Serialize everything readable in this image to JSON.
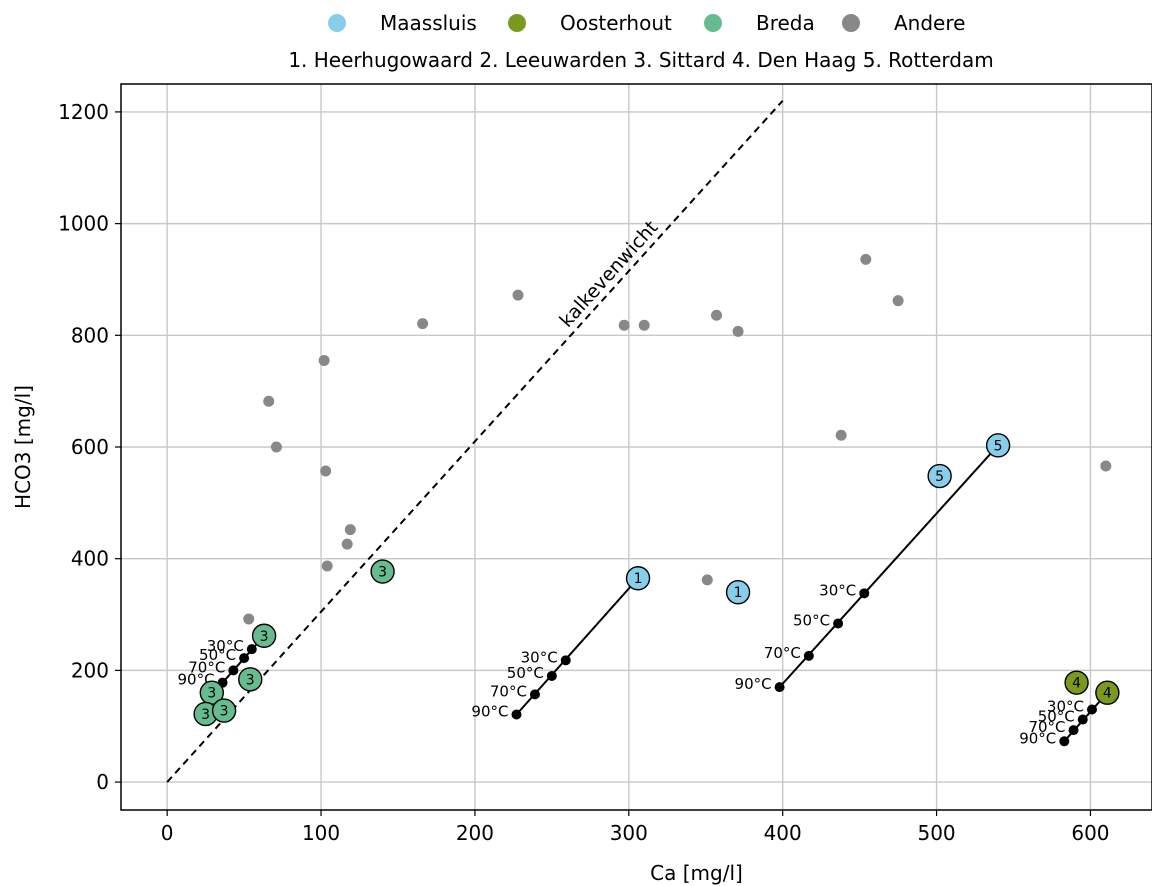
{
  "chart_data": {
    "type": "scatter",
    "xlabel": "Ca [mg/l]",
    "ylabel": "HCO3 [mg/l]",
    "xlim": [
      -30,
      640
    ],
    "ylim": [
      -50,
      1250
    ],
    "xticks": [
      0,
      100,
      200,
      300,
      400,
      500,
      600
    ],
    "yticks": [
      0,
      200,
      400,
      600,
      800,
      1000,
      1200
    ],
    "grid": true,
    "legend": {
      "placement": "top-center",
      "entries": [
        {
          "name": "Maassluis",
          "color": "#87ceeb"
        },
        {
          "name": "Oosterhout",
          "color": "#7a9a1e"
        },
        {
          "name": "Breda",
          "color": "#66bb8f"
        },
        {
          "name": "Andere",
          "color": "#888888"
        }
      ],
      "subtitle": "1. Heerhugowaard  2. Leeuwarden  3. Sittard  4. Den Haag  5. Rotterdam"
    },
    "equilibrium_line": {
      "label": "kalkevenwicht",
      "x": [
        0,
        400
      ],
      "y": [
        0,
        1220
      ]
    },
    "series": [
      {
        "name": "Andere",
        "color": "#888888",
        "points": [
          [
            53,
            292
          ],
          [
            66,
            682
          ],
          [
            71,
            600
          ],
          [
            102,
            755
          ],
          [
            103,
            557
          ],
          [
            104,
            387
          ],
          [
            117,
            426
          ],
          [
            119,
            452
          ],
          [
            166,
            821
          ],
          [
            228,
            872
          ],
          [
            297,
            818
          ],
          [
            310,
            818
          ],
          [
            351,
            362
          ],
          [
            357,
            836
          ],
          [
            371,
            807
          ],
          [
            438,
            621
          ],
          [
            454,
            936
          ],
          [
            475,
            862
          ],
          [
            610,
            566
          ]
        ]
      },
      {
        "name": "Maassluis",
        "color": "#87ceeb",
        "points": [
          [
            306,
            365,
            "1"
          ],
          [
            371,
            340,
            "1"
          ],
          [
            502,
            548,
            "5"
          ],
          [
            540,
            603,
            "5"
          ]
        ]
      },
      {
        "name": "Oosterhout",
        "color": "#7a9a1e",
        "points": [
          [
            591,
            178,
            "4"
          ],
          [
            611,
            160,
            "4"
          ]
        ]
      },
      {
        "name": "Breda",
        "color": "#66bb8f",
        "points": [
          [
            140,
            377,
            "3"
          ],
          [
            63,
            262,
            "3"
          ],
          [
            54,
            184,
            "3"
          ],
          [
            29,
            160,
            "3"
          ],
          [
            25,
            122,
            "3"
          ],
          [
            37,
            128,
            "3"
          ]
        ]
      }
    ],
    "temperature_lines": [
      {
        "start": [
          306,
          365
        ],
        "points": [
          [
            259,
            218,
            "30°C"
          ],
          [
            250,
            190,
            "50°C"
          ],
          [
            239,
            157,
            "70°C"
          ],
          [
            227,
            121,
            "90°C"
          ]
        ]
      },
      {
        "start": [
          540,
          603
        ],
        "points": [
          [
            453,
            338,
            "30°C"
          ],
          [
            436,
            284,
            "50°C"
          ],
          [
            417,
            226,
            "70°C"
          ],
          [
            398,
            170,
            "90°C"
          ]
        ]
      },
      {
        "start": [
          63,
          262
        ],
        "points": [
          [
            55,
            238,
            "30°C"
          ],
          [
            50,
            222,
            "50°C"
          ],
          [
            43,
            200,
            "70°C"
          ],
          [
            36,
            178,
            "90°C"
          ]
        ]
      },
      {
        "start": [
          611,
          160
        ],
        "points": [
          [
            601,
            130,
            "30°C"
          ],
          [
            595,
            112,
            "50°C"
          ],
          [
            589,
            93,
            "70°C"
          ],
          [
            583,
            73,
            "90°C"
          ]
        ]
      }
    ]
  }
}
